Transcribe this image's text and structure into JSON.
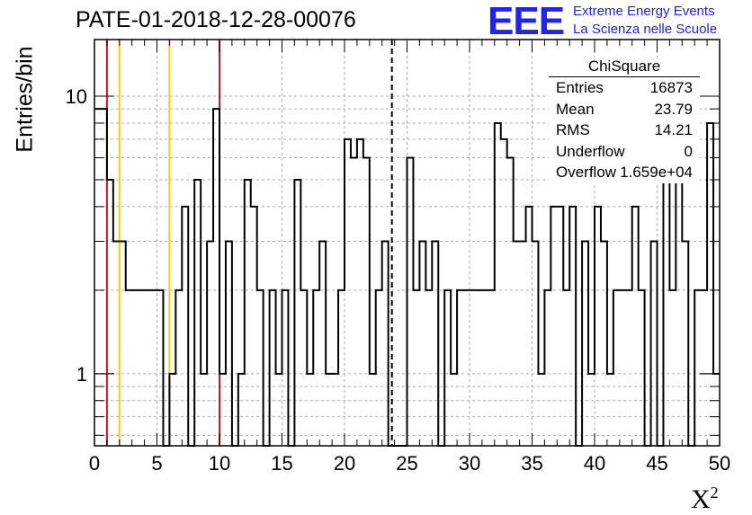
{
  "header": {
    "title": "PATE-01-2018-12-28-00076"
  },
  "logo": {
    "mark": "EEE",
    "line1": "Extreme Energy Events",
    "line2": "La Scienza nelle Scuole"
  },
  "stats": {
    "title": "ChiSquare",
    "rows": [
      {
        "label": "Entries",
        "value": "16873"
      },
      {
        "label": "Mean",
        "value": "23.79"
      },
      {
        "label": "RMS",
        "value": "14.21"
      },
      {
        "label": "Underflow",
        "value": "0"
      },
      {
        "label": "Overflow",
        "value": "1.659e+04"
      }
    ]
  },
  "chart_data": {
    "type": "histogram",
    "xlabel": "X",
    "xlabel_sup": "2",
    "ylabel": "Entries/bin",
    "xlim": [
      0,
      50
    ],
    "ylim": [
      0.55,
      16
    ],
    "yscale": "log",
    "grid": true,
    "bin_width": 0.5,
    "xticks": [
      0,
      5,
      10,
      15,
      20,
      25,
      30,
      35,
      40,
      45,
      50
    ],
    "yticks": [
      1,
      10
    ],
    "values": [
      9,
      9,
      5,
      3,
      3,
      2,
      2,
      2,
      2,
      2,
      2,
      0,
      1,
      2,
      4,
      0,
      5,
      1,
      3,
      9,
      1,
      3,
      0,
      1,
      5,
      4,
      2,
      0,
      2,
      1,
      2,
      0,
      5,
      2,
      1,
      2,
      3,
      1,
      1,
      2,
      7,
      6,
      7,
      6,
      1,
      2,
      3,
      0,
      0,
      0,
      6,
      2,
      3,
      2,
      3,
      0,
      2,
      1,
      2,
      2,
      2,
      2,
      2,
      2,
      8,
      7,
      6,
      3,
      3,
      4,
      3,
      1,
      2,
      4,
      4,
      2,
      4,
      0,
      3,
      1,
      4,
      3,
      1,
      2,
      2,
      2,
      4,
      2,
      0,
      3,
      0,
      8,
      2,
      5,
      3,
      0,
      2,
      2,
      8,
      1
    ],
    "vlines": [
      {
        "x": 1,
        "color": "#dd1111",
        "style": "solid"
      },
      {
        "x": 2,
        "color": "#ffcc00",
        "style": "solid"
      },
      {
        "x": 6,
        "color": "#ffcc00",
        "style": "solid"
      },
      {
        "x": 10,
        "color": "#dd1111",
        "style": "solid"
      },
      {
        "x": 23.79,
        "color": "#000000",
        "style": "dashed"
      }
    ]
  }
}
